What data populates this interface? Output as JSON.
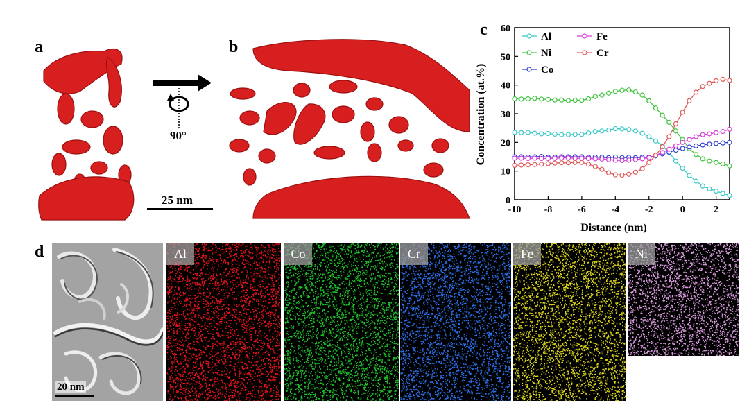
{
  "panels": {
    "a": "a",
    "b": "b",
    "c": "c",
    "d": "d"
  },
  "rotation_label": "90°",
  "scale_bar_top": "25 nm",
  "scale_bar_tem": "20 nm",
  "maps": [
    {
      "label": "Al",
      "color": "#e3131b"
    },
    {
      "label": "Co",
      "color": "#20c02a"
    },
    {
      "label": "Cr",
      "color": "#2a6ee8"
    },
    {
      "label": "Fe",
      "color": "#d8d21e"
    },
    {
      "label": "Ni",
      "color": "#d79adc"
    }
  ],
  "chart_data": {
    "type": "line",
    "xlabel": "Distance (nm)",
    "ylabel": "Concentration (at.%)",
    "xlim": [
      -10,
      2.8
    ],
    "ylim": [
      0,
      60
    ],
    "xticks": [
      -10,
      -8,
      -6,
      -4,
      -2,
      0,
      2
    ],
    "yticks": [
      0,
      10,
      20,
      30,
      40,
      50,
      60
    ],
    "legend_position": "top-left",
    "x": [
      -10.0,
      -9.6,
      -9.2,
      -8.8,
      -8.4,
      -8.0,
      -7.6,
      -7.2,
      -6.8,
      -6.4,
      -6.0,
      -5.6,
      -5.2,
      -4.8,
      -4.4,
      -4.0,
      -3.6,
      -3.2,
      -2.8,
      -2.4,
      -2.0,
      -1.6,
      -1.2,
      -0.8,
      -0.4,
      0.0,
      0.4,
      0.8,
      1.2,
      1.6,
      2.0,
      2.4,
      2.8
    ],
    "series": [
      {
        "name": "Al",
        "color": "#3cc8c8",
        "values": [
          23.5,
          23.4,
          23.5,
          23.2,
          23.0,
          23.1,
          22.9,
          22.7,
          22.7,
          22.8,
          22.8,
          23.3,
          23.8,
          24.0,
          24.3,
          24.8,
          24.7,
          24.5,
          24.0,
          23.2,
          22.0,
          20.5,
          18.8,
          16.5,
          13.5,
          11.0,
          8.5,
          6.5,
          4.8,
          3.8,
          3.0,
          2.2,
          1.5
        ]
      },
      {
        "name": "Ni",
        "color": "#3ec43e",
        "values": [
          35.2,
          35.1,
          35.2,
          35.4,
          35.1,
          35.0,
          34.8,
          34.8,
          34.6,
          34.7,
          34.7,
          35.2,
          36.0,
          36.5,
          37.2,
          37.8,
          38.2,
          38.3,
          37.6,
          36.5,
          34.5,
          32.0,
          29.5,
          27.0,
          24.0,
          21.0,
          17.8,
          15.8,
          14.3,
          13.5,
          13.0,
          12.5,
          11.8
        ]
      },
      {
        "name": "Co",
        "color": "#2e3fd0",
        "values": [
          15.0,
          15.0,
          14.9,
          15.0,
          15.1,
          14.8,
          14.9,
          15.0,
          15.0,
          15.0,
          15.0,
          14.8,
          14.9,
          14.8,
          14.7,
          14.9,
          14.7,
          14.8,
          14.7,
          14.8,
          14.9,
          15.3,
          16.0,
          16.6,
          17.3,
          17.9,
          18.4,
          18.8,
          19.1,
          19.4,
          19.6,
          19.8,
          20.0
        ]
      },
      {
        "name": "Fe",
        "color": "#d83cd8",
        "values": [
          14.5,
          14.5,
          14.4,
          14.5,
          14.4,
          14.4,
          14.5,
          14.6,
          14.6,
          14.5,
          14.5,
          14.4,
          14.3,
          14.2,
          14.0,
          13.8,
          13.7,
          13.8,
          14.0,
          14.3,
          14.7,
          15.5,
          16.5,
          17.6,
          18.8,
          20.0,
          21.0,
          22.0,
          22.7,
          23.0,
          23.4,
          23.8,
          24.6
        ]
      },
      {
        "name": "Cr",
        "color": "#e05858",
        "values": [
          12.0,
          12.1,
          12.2,
          12.3,
          12.4,
          12.6,
          12.8,
          12.9,
          12.9,
          13.0,
          13.0,
          12.4,
          11.6,
          10.6,
          9.4,
          8.7,
          8.6,
          8.9,
          9.6,
          10.8,
          13.0,
          15.5,
          18.5,
          22.0,
          26.5,
          30.5,
          34.5,
          37.5,
          39.5,
          40.6,
          41.5,
          42.0,
          41.6
        ]
      }
    ]
  }
}
